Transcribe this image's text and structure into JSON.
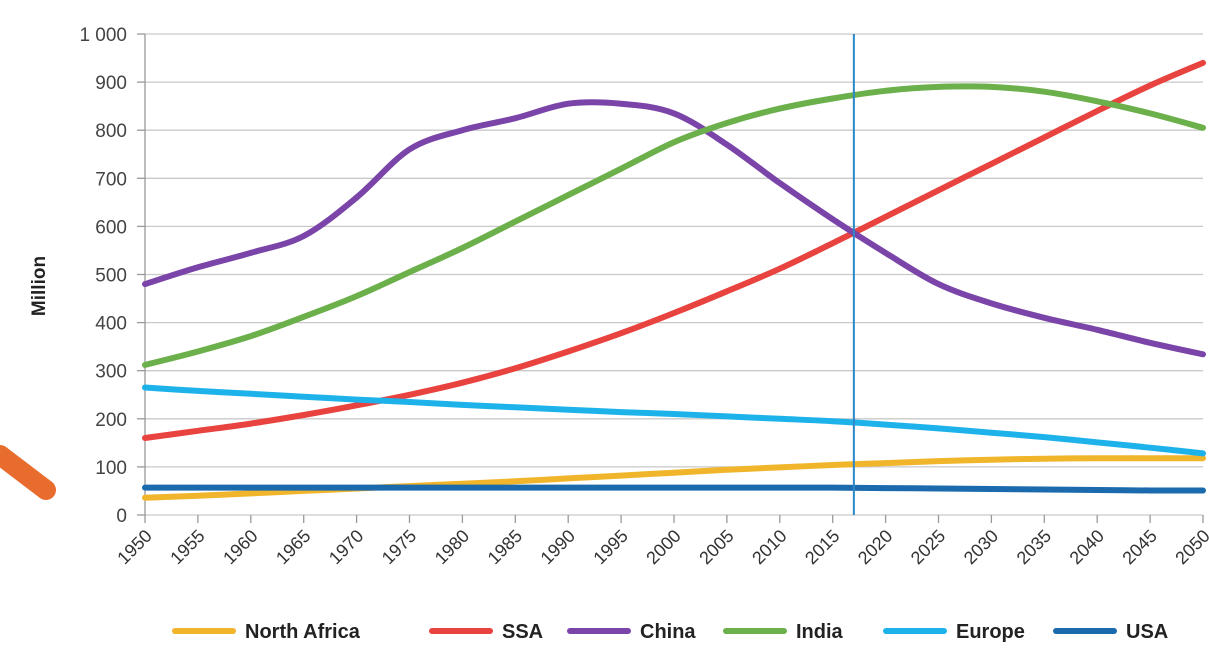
{
  "chart_data": {
    "type": "line",
    "title": "",
    "xlabel": "",
    "ylabel": "Million",
    "x": [
      1950,
      1955,
      1960,
      1965,
      1970,
      1975,
      1980,
      1985,
      1990,
      1995,
      2000,
      2005,
      2010,
      2015,
      2020,
      2025,
      2030,
      2035,
      2040,
      2045,
      2050
    ],
    "ylim": [
      0,
      1000
    ],
    "yticks": [
      0,
      100,
      200,
      300,
      400,
      500,
      600,
      700,
      800,
      900,
      1000
    ],
    "ytick_labels": [
      "0",
      "100",
      "200",
      "300",
      "400",
      "500",
      "600",
      "700",
      "800",
      "900",
      "1 000"
    ],
    "xticks": [
      1950,
      1955,
      1960,
      1965,
      1970,
      1975,
      1980,
      1985,
      1990,
      1995,
      2000,
      2005,
      2010,
      2015,
      2020,
      2025,
      2030,
      2035,
      2040,
      2045,
      2050
    ],
    "reference_line_x": 2017,
    "grid": "horizontal",
    "legend_position": "bottom",
    "series": [
      {
        "name": "North Africa",
        "color": "#f0b52a",
        "values": [
          36,
          40,
          45,
          50,
          55,
          60,
          65,
          70,
          76,
          82,
          88,
          94,
          99,
          104,
          108,
          112,
          115,
          117,
          118,
          118,
          118
        ]
      },
      {
        "name": "SSA",
        "color": "#e8433f",
        "values": [
          160,
          175,
          190,
          208,
          228,
          250,
          275,
          305,
          340,
          378,
          420,
          465,
          512,
          565,
          620,
          675,
          730,
          785,
          840,
          893,
          940
        ]
      },
      {
        "name": "China",
        "color": "#7a44a8",
        "values": [
          480,
          515,
          545,
          580,
          660,
          760,
          800,
          825,
          855,
          855,
          835,
          770,
          690,
          615,
          545,
          480,
          440,
          410,
          385,
          358,
          334
        ]
      },
      {
        "name": "India",
        "color": "#6bb04b",
        "values": [
          312,
          340,
          372,
          412,
          455,
          505,
          555,
          610,
          665,
          720,
          775,
          815,
          845,
          866,
          882,
          890,
          890,
          880,
          860,
          835,
          805
        ]
      },
      {
        "name": "Europe",
        "color": "#1eb2ea",
        "values": [
          265,
          258,
          252,
          246,
          240,
          235,
          229,
          224,
          219,
          214,
          210,
          205,
          200,
          195,
          188,
          180,
          171,
          162,
          151,
          140,
          128
        ]
      },
      {
        "name": "USA",
        "color": "#1a6aad",
        "values": [
          57,
          57,
          57,
          57,
          57,
          57,
          57,
          57,
          57,
          57,
          57,
          57,
          57,
          57,
          56,
          55,
          54,
          53,
          52,
          51,
          51
        ]
      }
    ]
  }
}
